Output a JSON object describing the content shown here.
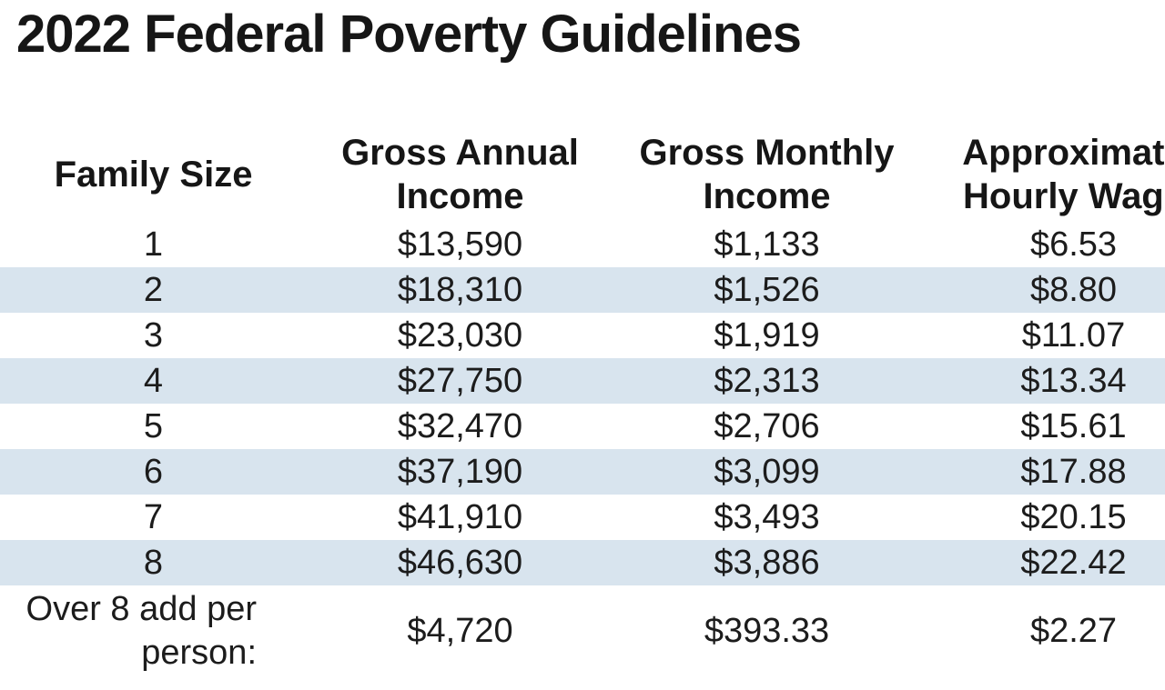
{
  "title": "2022 Federal Poverty Guidelines",
  "colors": {
    "row_band": "#d8e4ee",
    "text": "#1c1c1c",
    "background": "#ffffff"
  },
  "table": {
    "columns": {
      "family_size": "Family Size",
      "annual": "Gross Annual Income",
      "monthly": "Gross Monthly Income",
      "hourly": "Approximate Hourly Wage"
    },
    "rows": [
      {
        "size": "1",
        "annual": "$13,590",
        "monthly": "$1,133",
        "hourly": "$6.53"
      },
      {
        "size": "2",
        "annual": "$18,310",
        "monthly": "$1,526",
        "hourly": "$8.80"
      },
      {
        "size": "3",
        "annual": "$23,030",
        "monthly": "$1,919",
        "hourly": "$11.07"
      },
      {
        "size": "4",
        "annual": "$27,750",
        "monthly": "$2,313",
        "hourly": "$13.34"
      },
      {
        "size": "5",
        "annual": "$32,470",
        "monthly": "$2,706",
        "hourly": "$15.61"
      },
      {
        "size": "6",
        "annual": "$37,190",
        "monthly": "$3,099",
        "hourly": "$17.88"
      },
      {
        "size": "7",
        "annual": "$41,910",
        "monthly": "$3,493",
        "hourly": "$20.15"
      },
      {
        "size": "8",
        "annual": "$46,630",
        "monthly": "$3,886",
        "hourly": "$22.42"
      },
      {
        "size": "Over 8 add per person:",
        "annual": "$4,720",
        "monthly": "$393.33",
        "hourly": "$2.27"
      }
    ]
  },
  "chart_data": {
    "type": "table",
    "title": "2022 Federal Poverty Guidelines",
    "columns": [
      "Family Size",
      "Gross Annual Income",
      "Gross Monthly Income",
      "Approximate Hourly Wage"
    ],
    "rows": [
      [
        "1",
        "$13,590",
        "$1,133",
        "$6.53"
      ],
      [
        "2",
        "$18,310",
        "$1,526",
        "$8.80"
      ],
      [
        "3",
        "$23,030",
        "$1,919",
        "$11.07"
      ],
      [
        "4",
        "$27,750",
        "$2,313",
        "$13.34"
      ],
      [
        "5",
        "$32,470",
        "$2,706",
        "$15.61"
      ],
      [
        "6",
        "$37,190",
        "$3,099",
        "$17.88"
      ],
      [
        "7",
        "$41,910",
        "$3,493",
        "$20.15"
      ],
      [
        "8",
        "$46,630",
        "$3,886",
        "$22.42"
      ],
      [
        "Over 8 add per person:",
        "$4,720",
        "$393.33",
        "$2.27"
      ]
    ],
    "layout_hints": {
      "striped_rows": [
        2,
        4,
        6,
        8
      ],
      "stripe_color": "#d8e4ee",
      "fourth_column_clipped_at_right_edge": true
    }
  }
}
